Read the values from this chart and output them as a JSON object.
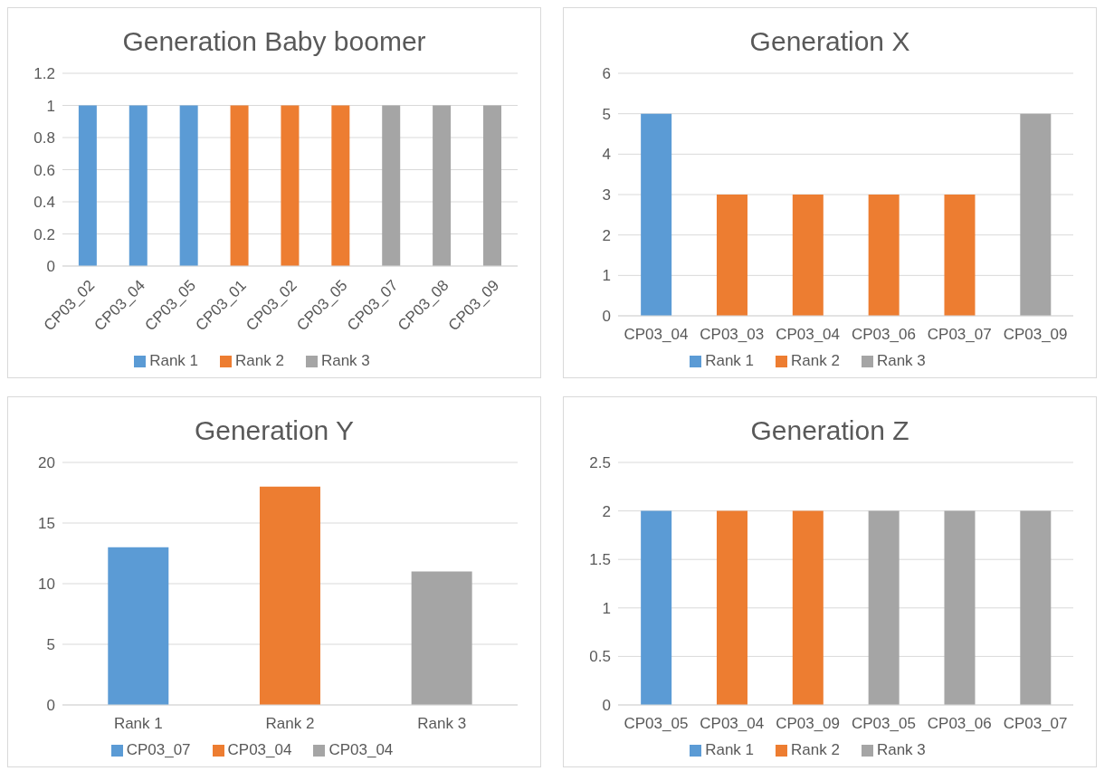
{
  "chart_data": [
    {
      "type": "bar",
      "title": "Generation Baby boomer",
      "categories": [
        "CP03_02",
        "CP03_04",
        "CP03_05",
        "CP03_01",
        "CP03_02",
        "CP03_05",
        "CP03_07",
        "CP03_08",
        "CP03_09"
      ],
      "stacked": true,
      "ylim": [
        0,
        1.2
      ],
      "yticks": [
        0,
        0.2,
        0.4,
        0.6,
        0.8,
        1,
        1.2
      ],
      "grid": "y",
      "legend": "bottom",
      "series": [
        {
          "name": "Rank 1",
          "color": "#5b9bd5",
          "values": [
            1,
            1,
            1,
            null,
            null,
            null,
            null,
            null,
            null
          ]
        },
        {
          "name": "Rank 2",
          "color": "#ed7d31",
          "values": [
            null,
            null,
            null,
            1,
            1,
            1,
            null,
            null,
            null
          ]
        },
        {
          "name": "Rank 3",
          "color": "#a5a5a5",
          "values": [
            null,
            null,
            null,
            null,
            null,
            null,
            1,
            1,
            1
          ]
        }
      ]
    },
    {
      "type": "bar",
      "title": "Generation X",
      "categories": [
        "CP03_04",
        "CP03_03",
        "CP03_04",
        "CP03_06",
        "CP03_07",
        "CP03_09"
      ],
      "stacked": true,
      "ylim": [
        0,
        6
      ],
      "yticks": [
        0,
        1,
        2,
        3,
        4,
        5,
        6
      ],
      "grid": "y",
      "legend": "bottom",
      "series": [
        {
          "name": "Rank 1",
          "color": "#5b9bd5",
          "values": [
            5,
            null,
            null,
            null,
            null,
            null
          ]
        },
        {
          "name": "Rank 2",
          "color": "#ed7d31",
          "values": [
            null,
            3,
            3,
            3,
            3,
            null
          ]
        },
        {
          "name": "Rank 3",
          "color": "#a5a5a5",
          "values": [
            null,
            null,
            null,
            null,
            null,
            5
          ]
        }
      ]
    },
    {
      "type": "bar",
      "title": "Generation Y",
      "categories": [
        "Rank 1",
        "Rank 2",
        "Rank 3"
      ],
      "stacked": true,
      "ylim": [
        0,
        20
      ],
      "yticks": [
        0,
        5,
        10,
        15,
        20
      ],
      "grid": "y",
      "legend": "bottom",
      "series": [
        {
          "name": "CP03_07",
          "color": "#5b9bd5",
          "values": [
            13,
            null,
            null
          ]
        },
        {
          "name": "CP03_04",
          "color": "#ed7d31",
          "values": [
            null,
            18,
            null
          ]
        },
        {
          "name": "CP03_04",
          "color": "#a5a5a5",
          "values": [
            null,
            null,
            11
          ]
        }
      ]
    },
    {
      "type": "bar",
      "title": "Generation Z",
      "categories": [
        "CP03_05",
        "CP03_04",
        "CP03_09",
        "CP03_05",
        "CP03_06",
        "CP03_07"
      ],
      "stacked": true,
      "ylim": [
        0,
        2.5
      ],
      "yticks": [
        0,
        0.5,
        1,
        1.5,
        2,
        2.5
      ],
      "grid": "y",
      "legend": "bottom",
      "series": [
        {
          "name": "Rank 1",
          "color": "#5b9bd5",
          "values": [
            2,
            null,
            null,
            null,
            null,
            null
          ]
        },
        {
          "name": "Rank 2",
          "color": "#ed7d31",
          "values": [
            null,
            2,
            2,
            null,
            null,
            null
          ]
        },
        {
          "name": "Rank 3",
          "color": "#a5a5a5",
          "values": [
            null,
            null,
            null,
            2,
            2,
            2
          ]
        }
      ]
    }
  ]
}
